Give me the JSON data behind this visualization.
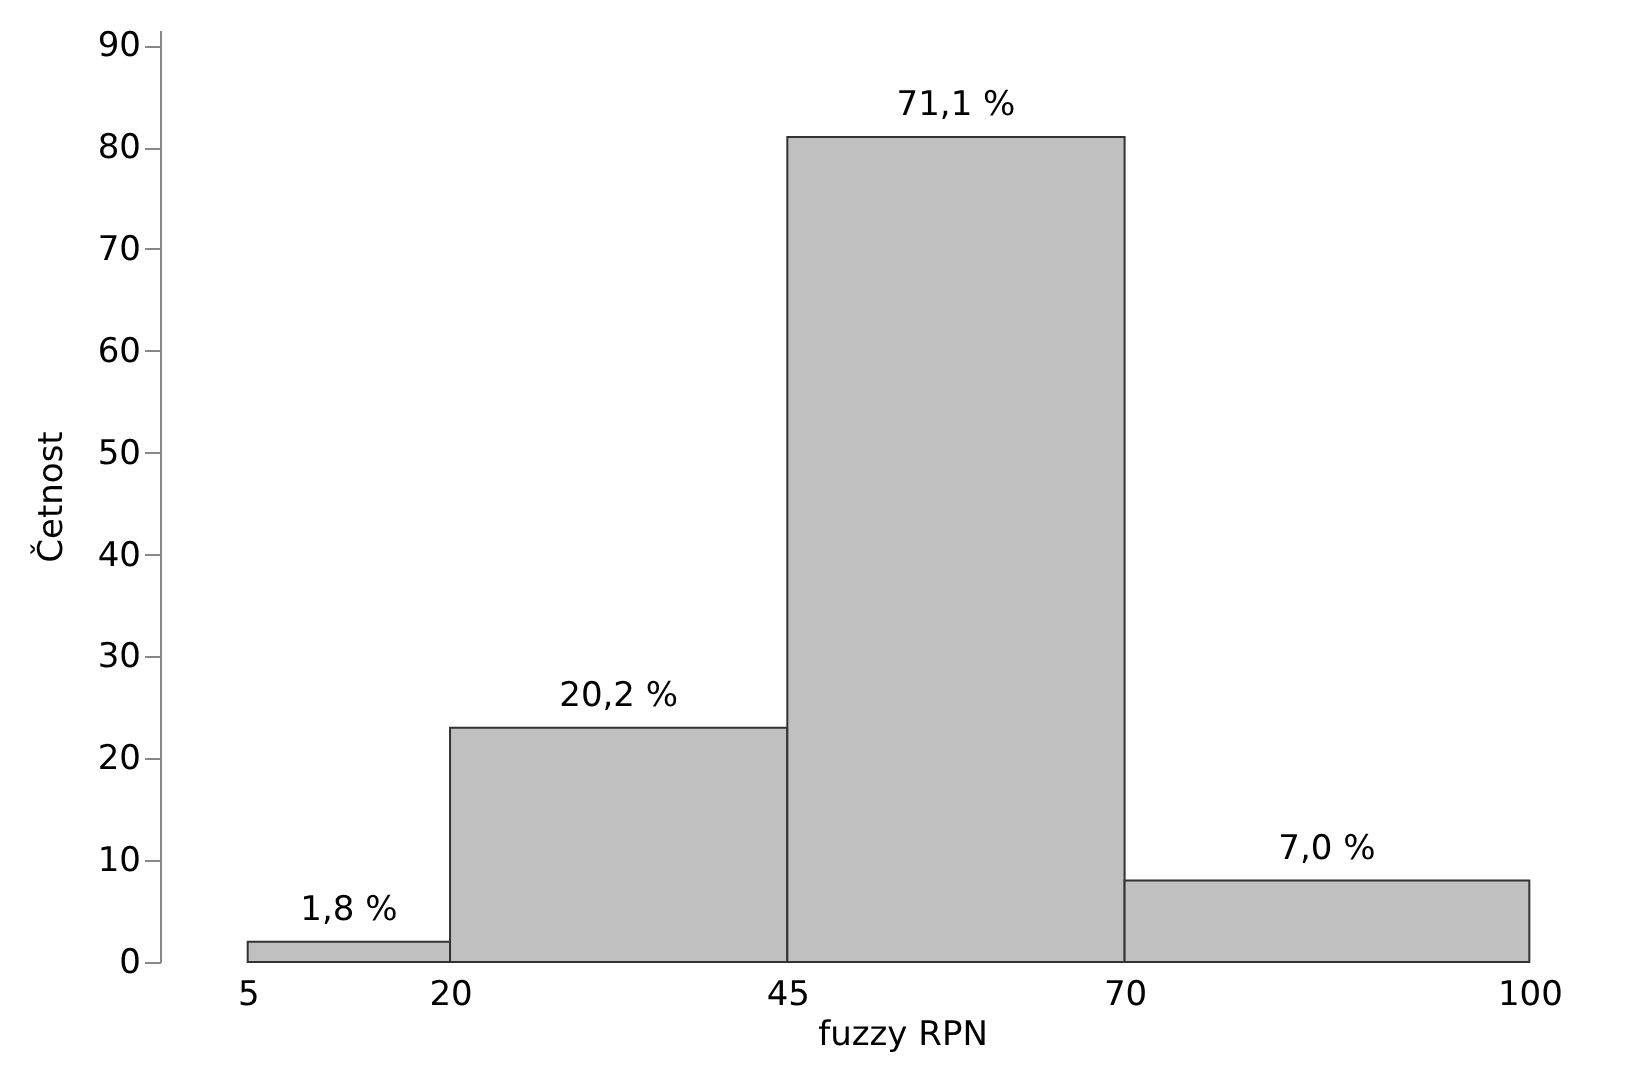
{
  "chart_data": {
    "type": "histogram",
    "xlabel": "fuzzy RPN",
    "ylabel": "Četnost",
    "bins": [
      5,
      20,
      45,
      70,
      100
    ],
    "values": [
      2,
      23,
      81,
      8
    ],
    "annotations": [
      {
        "text": "1,8 %",
        "x": 12.5,
        "y": 2
      },
      {
        "text": "20,2 %",
        "x": 32.5,
        "y": 23
      },
      {
        "text": "71,1 %",
        "x": 57.5,
        "y": 81
      },
      {
        "text": "7,0 %",
        "x": 85,
        "y": 8
      }
    ],
    "color": "#c0c0c0",
    "xlim": [
      -1.5,
      108.5
    ],
    "xticks": [
      5,
      20,
      45,
      70,
      100
    ],
    "ylim": [
      0,
      91.5
    ],
    "yticks": [
      0,
      10,
      20,
      30,
      40,
      50,
      60,
      70,
      80,
      90
    ],
    "grid": false
  }
}
